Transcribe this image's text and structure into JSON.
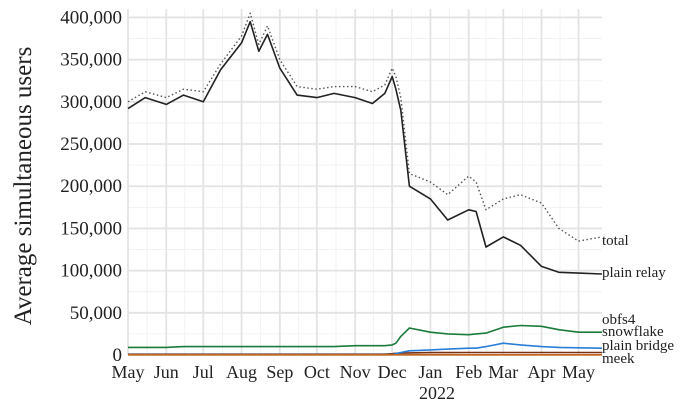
{
  "chart_data": {
    "type": "line",
    "ylabel": "Average simultaneous users",
    "xlabel": "",
    "year_label": "2022",
    "y_ticks": [
      "0",
      "50,000",
      "100,000",
      "150,000",
      "200,000",
      "250,000",
      "300,000",
      "350,000",
      "400,000"
    ],
    "y_tick_values": [
      0,
      50000,
      100000,
      150000,
      200000,
      250000,
      300000,
      350000,
      400000
    ],
    "ylim": [
      0,
      410000
    ],
    "x_ticks": [
      "May",
      "Jun",
      "Jul",
      "Aug",
      "Sep",
      "Oct",
      "Nov",
      "Dec",
      "Jan",
      "Feb",
      "Mar",
      "Apr",
      "May"
    ],
    "x_tick_dates": [
      "2021-05-01",
      "2021-06-01",
      "2021-07-01",
      "2021-08-01",
      "2021-09-01",
      "2021-10-01",
      "2021-11-01",
      "2021-12-01",
      "2022-01-01",
      "2022-02-01",
      "2022-03-01",
      "2022-04-01",
      "2022-05-01"
    ],
    "xlim": [
      "2021-05-01",
      "2022-05-20"
    ],
    "grid": true,
    "x": [
      "2021-05-01",
      "2021-05-15",
      "2021-06-01",
      "2021-06-15",
      "2021-07-01",
      "2021-07-15",
      "2021-08-01",
      "2021-08-08",
      "2021-08-15",
      "2021-08-22",
      "2021-09-01",
      "2021-09-15",
      "2021-10-01",
      "2021-10-15",
      "2021-11-01",
      "2021-11-15",
      "2021-11-25",
      "2021-12-01",
      "2021-12-04",
      "2021-12-08",
      "2021-12-15",
      "2022-01-01",
      "2022-01-15",
      "2022-02-01",
      "2022-02-07",
      "2022-02-15",
      "2022-03-01",
      "2022-03-15",
      "2022-04-01",
      "2022-04-15",
      "2022-05-01",
      "2022-05-20"
    ],
    "series": [
      {
        "name": "total",
        "dash": "dotted",
        "color": "#555555",
        "values": [
          300000,
          312000,
          305000,
          315000,
          312000,
          345000,
          378000,
          405000,
          368000,
          390000,
          350000,
          318000,
          315000,
          318000,
          318000,
          312000,
          320000,
          340000,
          330000,
          305000,
          215000,
          205000,
          190000,
          212000,
          205000,
          172000,
          185000,
          190000,
          180000,
          150000,
          135000,
          140000
        ]
      },
      {
        "name": "plain relay",
        "dash": "solid",
        "color": "#222222",
        "values": [
          292000,
          305000,
          297000,
          308000,
          300000,
          338000,
          370000,
          395000,
          360000,
          380000,
          340000,
          308000,
          305000,
          310000,
          305000,
          298000,
          310000,
          330000,
          315000,
          290000,
          200000,
          185000,
          160000,
          172000,
          170000,
          128000,
          140000,
          130000,
          105000,
          98000,
          97000,
          96000
        ]
      },
      {
        "name": "obfs4",
        "dash": "solid",
        "color": "#1b7b3a",
        "values": [
          9000,
          9000,
          9000,
          10000,
          10000,
          10000,
          10000,
          10000,
          10000,
          10000,
          10000,
          10000,
          10000,
          10000,
          11000,
          11000,
          11000,
          12000,
          14000,
          22000,
          32000,
          27000,
          25000,
          24000,
          25000,
          26000,
          33000,
          35000,
          34000,
          30000,
          27000,
          27000
        ]
      },
      {
        "name": "snowflake",
        "dash": "solid",
        "color": "#7a2e0e",
        "values": [
          1000,
          1000,
          1000,
          1000,
          1000,
          1000,
          1000,
          1000,
          1000,
          1000,
          1000,
          1000,
          1000,
          1000,
          1000,
          1000,
          1000,
          1500,
          2000,
          2200,
          2500,
          2800,
          2800,
          3000,
          3000,
          3000,
          3000,
          3000,
          3000,
          3000,
          3000,
          3000
        ]
      },
      {
        "name": "plain bridge",
        "dash": "solid",
        "color": "#2a7ed8",
        "values": [
          500,
          500,
          500,
          500,
          500,
          500,
          500,
          500,
          500,
          500,
          500,
          500,
          500,
          500,
          500,
          500,
          500,
          500,
          1500,
          3000,
          5000,
          6000,
          7000,
          8000,
          8000,
          10000,
          14000,
          12000,
          10000,
          9000,
          8500,
          8000
        ]
      },
      {
        "name": "meek",
        "dash": "solid",
        "color": "#c0641a",
        "values": [
          200,
          200,
          200,
          200,
          200,
          200,
          200,
          200,
          200,
          200,
          200,
          200,
          200,
          200,
          200,
          200,
          200,
          200,
          200,
          200,
          200,
          200,
          200,
          200,
          200,
          200,
          200,
          200,
          200,
          200,
          200,
          200
        ]
      }
    ]
  }
}
